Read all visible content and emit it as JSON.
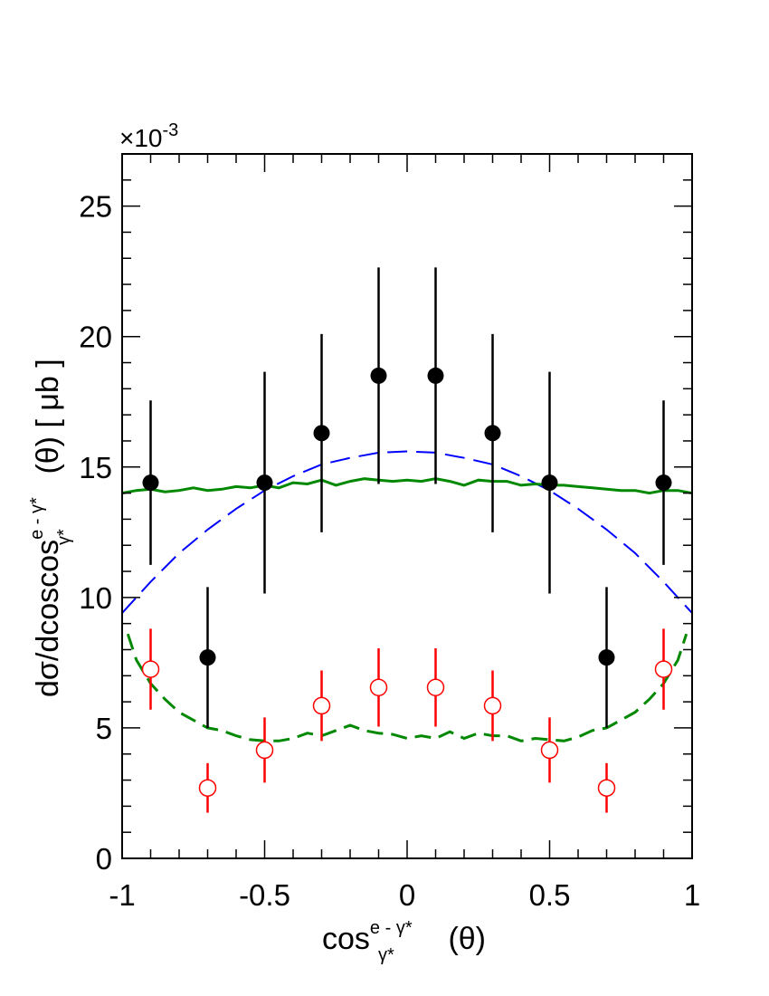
{
  "chart_data": {
    "type": "scatter",
    "xlim": [
      -1,
      1
    ],
    "ylim": [
      0,
      27
    ],
    "y_multiplier": "×10",
    "y_multiplier_exponent": "-3",
    "x_ticks": [
      -1,
      -0.5,
      0,
      0.5,
      1
    ],
    "x_tick_labels": [
      "-1",
      "-0.5",
      "0",
      "0.5",
      "1"
    ],
    "y_ticks": [
      0,
      5,
      10,
      15,
      20,
      25
    ],
    "y_tick_labels": [
      "0",
      "5",
      "10",
      "15",
      "20",
      "25"
    ],
    "xlabel": {
      "base": "cos",
      "sub": "γ*",
      "sup": "e - γ*",
      "tail": " (θ)"
    },
    "ylabel": {
      "base": "dσ/dcoscos",
      "sub": "γ*",
      "sup": "e - γ*",
      "tail": " (θ) [ μb ]"
    },
    "grid": false,
    "series": [
      {
        "marker": "filled-circle",
        "color": "#000000",
        "points": [
          {
            "x": -0.9,
            "y": 14.4,
            "err": 3.15
          },
          {
            "x": -0.7,
            "y": 7.7,
            "err": 2.7
          },
          {
            "x": -0.5,
            "y": 14.4,
            "err": 4.25
          },
          {
            "x": -0.3,
            "y": 16.3,
            "err": 3.8
          },
          {
            "x": -0.1,
            "y": 18.5,
            "err": 4.15
          },
          {
            "x": 0.1,
            "y": 18.5,
            "err": 4.15
          },
          {
            "x": 0.3,
            "y": 16.3,
            "err": 3.8
          },
          {
            "x": 0.5,
            "y": 14.4,
            "err": 4.25
          },
          {
            "x": 0.7,
            "y": 7.7,
            "err": 2.7
          },
          {
            "x": 0.9,
            "y": 14.4,
            "err": 3.15
          }
        ]
      },
      {
        "marker": "open-circle",
        "color": "#ff0000",
        "points": [
          {
            "x": -0.9,
            "y": 7.25,
            "err": 1.55
          },
          {
            "x": -0.7,
            "y": 2.7,
            "err": 0.95
          },
          {
            "x": -0.5,
            "y": 4.15,
            "err": 1.25
          },
          {
            "x": -0.3,
            "y": 5.85,
            "err": 1.35
          },
          {
            "x": -0.1,
            "y": 6.55,
            "err": 1.5
          },
          {
            "x": 0.1,
            "y": 6.55,
            "err": 1.5
          },
          {
            "x": 0.3,
            "y": 5.85,
            "err": 1.35
          },
          {
            "x": 0.5,
            "y": 4.15,
            "err": 1.25
          },
          {
            "x": 0.7,
            "y": 2.7,
            "err": 0.95
          },
          {
            "x": 0.9,
            "y": 7.25,
            "err": 1.55
          }
        ]
      },
      {
        "style": "long-dash",
        "color": "#0000ff",
        "x": [
          -1,
          -0.9,
          -0.8,
          -0.7,
          -0.6,
          -0.5,
          -0.4,
          -0.3,
          -0.2,
          -0.1,
          0,
          0.1,
          0.2,
          0.3,
          0.4,
          0.5,
          0.6,
          0.7,
          0.8,
          0.9,
          1
        ],
        "y": [
          9.4,
          10.6,
          11.7,
          12.6,
          13.4,
          14.1,
          14.65,
          15.1,
          15.35,
          15.55,
          15.6,
          15.55,
          15.35,
          15.1,
          14.65,
          14.1,
          13.4,
          12.6,
          11.7,
          10.6,
          9.4
        ]
      },
      {
        "style": "solid",
        "color": "#008800",
        "x": [
          -1,
          -0.95,
          -0.9,
          -0.85,
          -0.8,
          -0.75,
          -0.7,
          -0.65,
          -0.6,
          -0.55,
          -0.5,
          -0.45,
          -0.4,
          -0.35,
          -0.3,
          -0.25,
          -0.2,
          -0.15,
          -0.1,
          -0.05,
          0,
          0.05,
          0.1,
          0.15,
          0.2,
          0.25,
          0.3,
          0.35,
          0.4,
          0.45,
          0.5,
          0.55,
          0.6,
          0.65,
          0.7,
          0.75,
          0.8,
          0.85,
          0.9,
          0.95,
          1
        ],
        "y": [
          14.0,
          14.1,
          14.15,
          14.05,
          14.1,
          14.2,
          14.1,
          14.15,
          14.25,
          14.2,
          14.3,
          14.2,
          14.4,
          14.35,
          14.5,
          14.3,
          14.45,
          14.55,
          14.5,
          14.45,
          14.5,
          14.45,
          14.55,
          14.45,
          14.3,
          14.5,
          14.45,
          14.45,
          14.3,
          14.35,
          14.3,
          14.3,
          14.25,
          14.2,
          14.15,
          14.1,
          14.1,
          14.0,
          14.1,
          14.1,
          14.0
        ]
      },
      {
        "style": "dash",
        "color": "#008800",
        "x": [
          -0.98,
          -0.95,
          -0.9,
          -0.85,
          -0.8,
          -0.75,
          -0.7,
          -0.65,
          -0.6,
          -0.55,
          -0.5,
          -0.45,
          -0.4,
          -0.35,
          -0.3,
          -0.25,
          -0.2,
          -0.15,
          -0.1,
          -0.05,
          0,
          0.05,
          0.1,
          0.15,
          0.2,
          0.25,
          0.3,
          0.35,
          0.4,
          0.45,
          0.5,
          0.55,
          0.6,
          0.65,
          0.7,
          0.75,
          0.8,
          0.85,
          0.9,
          0.95,
          0.98
        ],
        "y": [
          8.6,
          7.6,
          6.7,
          6.1,
          5.6,
          5.3,
          5.0,
          4.9,
          4.7,
          4.55,
          4.5,
          4.5,
          4.6,
          4.8,
          4.7,
          4.9,
          5.1,
          4.9,
          4.8,
          4.75,
          4.6,
          4.7,
          4.6,
          4.85,
          4.6,
          4.8,
          4.7,
          4.7,
          4.5,
          4.6,
          4.55,
          4.5,
          4.65,
          4.9,
          5.0,
          5.3,
          5.6,
          6.1,
          6.7,
          7.6,
          8.6
        ]
      }
    ]
  }
}
